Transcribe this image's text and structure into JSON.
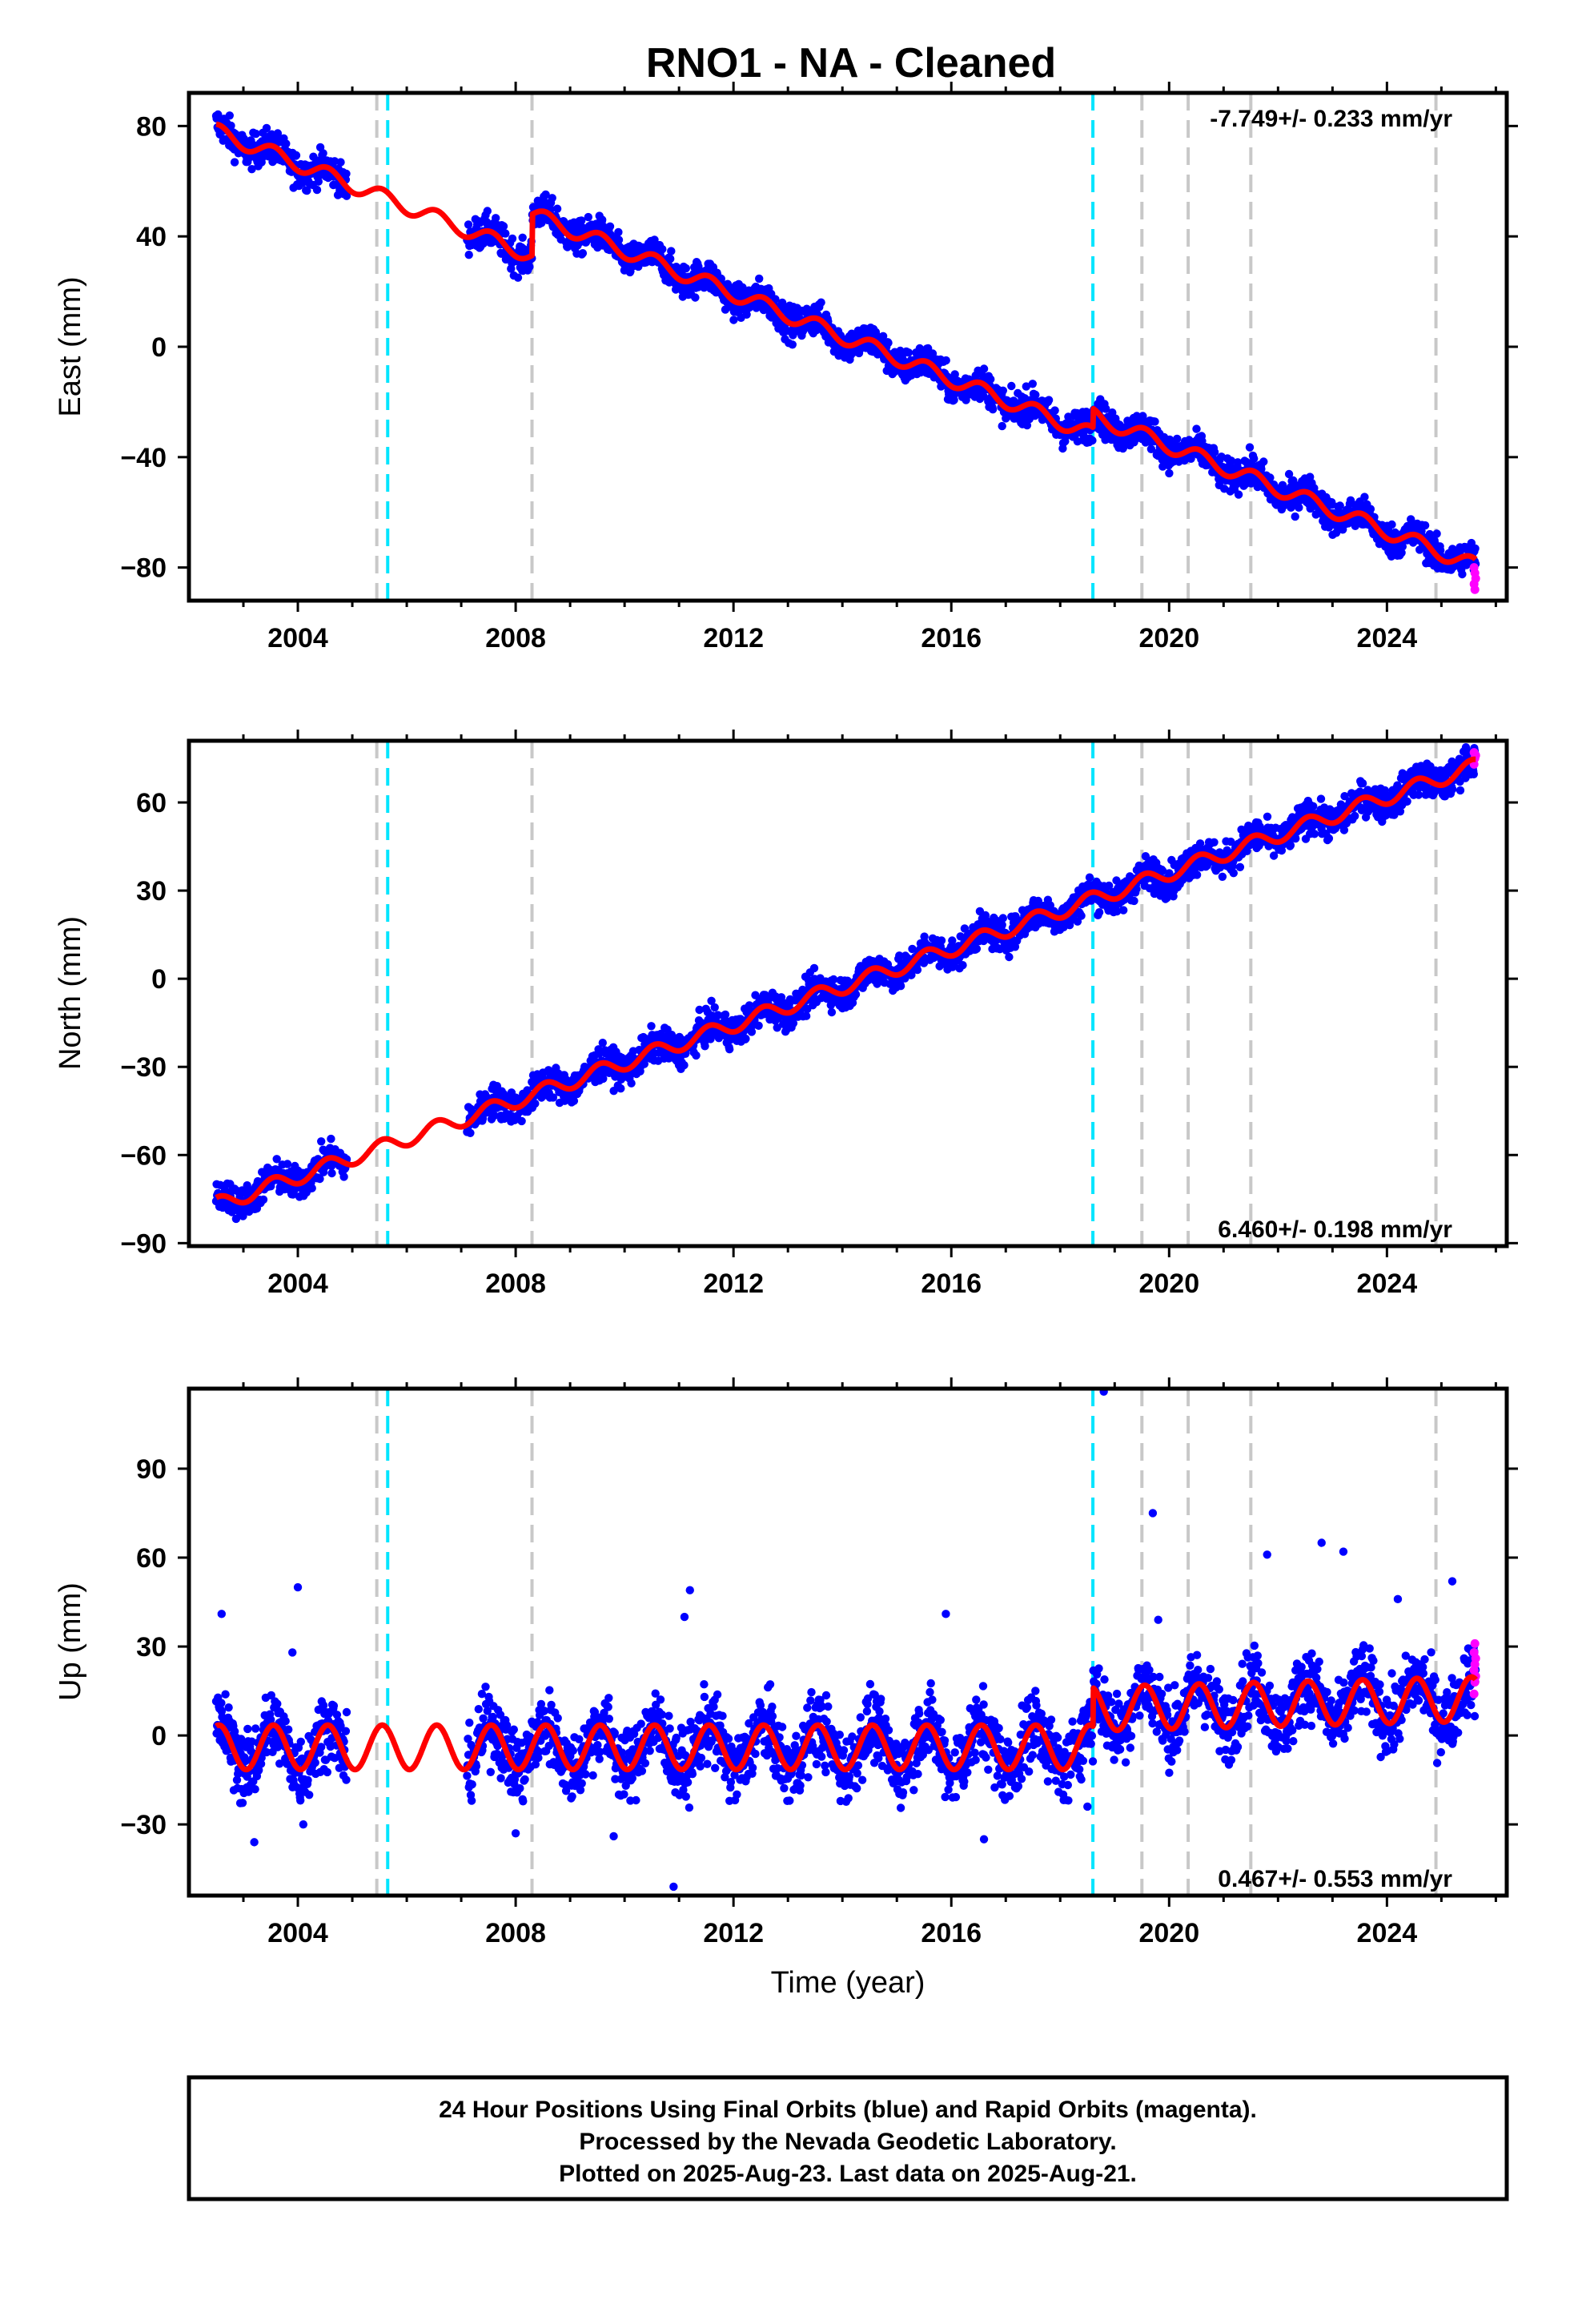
{
  "chart_data": {
    "type": "scatter",
    "title": "RNO1  - NA - Cleaned",
    "xlabel": "Time (year)",
    "xlim": [
      2002.0,
      2026.2
    ],
    "x_ticks": [
      2004,
      2008,
      2012,
      2016,
      2020,
      2024
    ],
    "x_tick_labels": [
      "2004",
      "2008",
      "2012",
      "2016",
      "2020",
      "2024"
    ],
    "grid": false,
    "colors": {
      "final_orbits": "#0000ff",
      "rapid_orbits": "#ff00ff",
      "model": "#ff0000",
      "antenna_change": "#00e5ff",
      "other_event": "#c8c8c8",
      "frame": "#000000"
    },
    "cyan_event_lines": [
      2005.65,
      2018.6
    ],
    "gray_event_lines": [
      2005.45,
      2008.3,
      2019.5,
      2020.35,
      2021.5,
      2024.9
    ],
    "data_gaps": [
      [
        2004.9,
        2007.1
      ]
    ],
    "panels": [
      {
        "name": "East",
        "ylabel": "East (mm)",
        "ylim": [
          -92,
          92
        ],
        "y_ticks": [
          80,
          40,
          0,
          -40,
          -80
        ],
        "y_tick_labels": [
          "80",
          "40",
          "0",
          "−40",
          "−80"
        ],
        "rate_text": "-7.749+/- 0.233 mm/yr",
        "rate_position": "top-right",
        "segments": [
          {
            "x_start": 2002.5,
            "x_end": 2008.3,
            "y_at_2002.5": 78.0,
            "slope": -7.749,
            "amplitude": 2.8
          },
          {
            "x_start": 2008.3,
            "x_end": 2018.6,
            "y_at_2008.3": 48.0,
            "slope": -7.749,
            "amplitude": 2.8
          },
          {
            "x_start": 2018.6,
            "x_end": 2025.63,
            "y_at_2018.6": -25.0,
            "slope": -7.749,
            "amplitude": 2.8
          }
        ],
        "scatter_noise_mm": 3.0,
        "rapid_orbit_values": [
          -80,
          -82,
          -84,
          -86,
          -88
        ]
      },
      {
        "name": "North",
        "ylabel": "North (mm)",
        "ylim": [
          -91,
          81
        ],
        "y_ticks": [
          60,
          30,
          0,
          -30,
          -60,
          -90
        ],
        "y_tick_labels": [
          "60",
          "30",
          "0",
          "−30",
          "−60",
          "−90"
        ],
        "rate_text": "6.460+/- 0.198 mm/yr",
        "rate_position": "bottom-right",
        "segments": [
          {
            "x_start": 2002.5,
            "x_end": 2025.63,
            "y_at_2002.5": -77.0,
            "slope": 6.46,
            "amplitude": 2.6
          }
        ],
        "scatter_noise_mm": 2.8,
        "rapid_orbit_values": [
          73,
          75,
          76,
          77
        ]
      },
      {
        "name": "Up",
        "ylabel": "Up (mm)",
        "ylim": [
          -54,
          117
        ],
        "y_ticks": [
          90,
          60,
          30,
          0,
          -30
        ],
        "y_tick_labels": [
          "90",
          "60",
          "30",
          "0",
          "−30"
        ],
        "rate_text": "0.467+/- 0.553 mm/yr",
        "rate_position": "bottom-right",
        "segments": [
          {
            "x_start": 2002.5,
            "x_end": 2018.6,
            "y_at_2002.5": -4.0,
            "slope": 0.0,
            "amplitude": 7.5
          },
          {
            "x_start": 2018.6,
            "x_end": 2025.63,
            "y_at_2018.6": 9.0,
            "slope": 0.467,
            "amplitude": 7.5
          }
        ],
        "scatter_noise_mm": 6.0,
        "rapid_orbit_values": [
          14,
          18,
          20,
          22,
          24,
          26,
          28,
          31
        ],
        "outliers": [
          {
            "x": 2002.6,
            "y": 41
          },
          {
            "x": 2004.0,
            "y": 50
          },
          {
            "x": 2003.9,
            "y": 28
          },
          {
            "x": 2011.2,
            "y": 49
          },
          {
            "x": 2011.1,
            "y": 40
          },
          {
            "x": 2015.9,
            "y": 41
          },
          {
            "x": 2018.8,
            "y": 116
          },
          {
            "x": 2019.7,
            "y": 75
          },
          {
            "x": 2019.8,
            "y": 39
          },
          {
            "x": 2021.8,
            "y": 61
          },
          {
            "x": 2022.8,
            "y": 65
          },
          {
            "x": 2023.2,
            "y": 62
          },
          {
            "x": 2024.2,
            "y": 46
          },
          {
            "x": 2025.2,
            "y": 52
          },
          {
            "x": 2010.9,
            "y": -51
          },
          {
            "x": 2003.2,
            "y": -36
          },
          {
            "x": 2004.1,
            "y": -30
          },
          {
            "x": 2008.0,
            "y": -33
          },
          {
            "x": 2016.6,
            "y": -35
          },
          {
            "x": 2009.8,
            "y": -34
          },
          {
            "x": 2018.5,
            "y": -24
          }
        ]
      }
    ]
  },
  "footer": {
    "line1": "24 Hour Positions Using Final Orbits (blue) and Rapid Orbits (magenta).",
    "line2": "Processed by the Nevada Geodetic Laboratory.",
    "line3": "Plotted on 2025-Aug-23. Last data on 2025-Aug-21."
  }
}
